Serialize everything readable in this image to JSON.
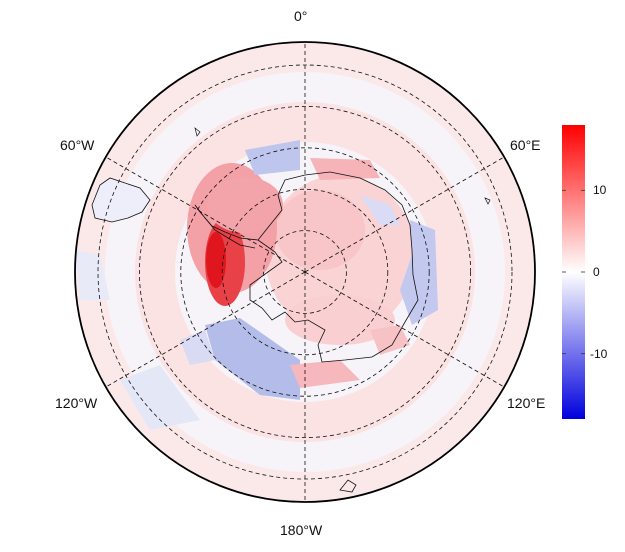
{
  "map": {
    "projection": "south-polar-stereographic",
    "longitude_labels": {
      "top": "0°",
      "upper_right": "60°E",
      "lower_right": "120°E",
      "bottom": "180°W",
      "lower_left": "120°W",
      "upper_left": "60°W"
    },
    "latitude_circles_deg": [
      -80,
      -70,
      -60,
      -50,
      -40
    ],
    "meridians_deg": [
      0,
      60,
      120,
      180,
      240,
      300
    ],
    "grid_style": "dashed"
  },
  "colorbar": {
    "min": -18,
    "max": 18,
    "ticks": [
      {
        "value": 10,
        "label": "10"
      },
      {
        "value": 0,
        "label": "0"
      },
      {
        "value": -10,
        "label": "-10"
      }
    ],
    "colors": {
      "low": "#0000dd",
      "mid": "#ffffff",
      "high": "#ff0000"
    }
  },
  "anomaly_features": [
    {
      "name": "Amundsen-Bellingshausen positive",
      "sign": "positive",
      "peak": 17
    },
    {
      "name": "West Antarctic positive",
      "sign": "positive",
      "peak": 9
    },
    {
      "name": "Ross Sea negative",
      "sign": "negative",
      "peak": -9
    },
    {
      "name": "Weddell Sea negative",
      "sign": "negative",
      "peak": -6
    },
    {
      "name": "Indian Ocean sector negative",
      "sign": "negative",
      "peak": -8
    },
    {
      "name": "East Antarctic coast positive",
      "sign": "positive",
      "peak": 6
    }
  ]
}
